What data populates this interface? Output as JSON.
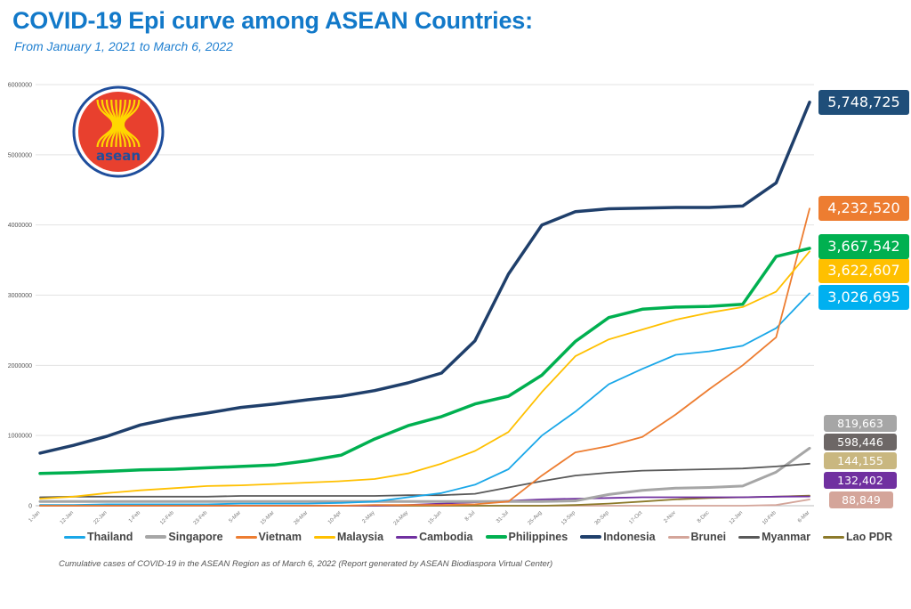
{
  "header": {
    "title": "COVID-19 Epi curve among ASEAN Countries:",
    "subtitle": "From January 1, 2021 to March 6, 2022"
  },
  "logo": {
    "text": "asean",
    "ring_color": "#1f4e9c",
    "fill_color": "#e8402e",
    "stalk_color": "#ffd700"
  },
  "caption": "Cumulative cases of COVID-19 in the ASEAN Region as of March 6, 2022 (Report generated by ASEAN Biodiaspora Virtual Center)",
  "chart_data": {
    "type": "line",
    "title": "COVID-19 Epi curve among ASEAN Countries:",
    "xlabel": "",
    "ylabel": "",
    "ylim": [
      0,
      6000000
    ],
    "y_ticks": [
      "0",
      "1000000",
      "2000000",
      "3000000",
      "4000000",
      "5000000",
      "6000000"
    ],
    "grid": true,
    "legend_position": "bottom",
    "categories": [
      "1-Jan",
      "12-Jan",
      "22-Jan",
      "1-Feb",
      "12-Feb",
      "23-Feb",
      "5-Mar",
      "15-Mar",
      "26-Mar",
      "10-Apr",
      "2-May",
      "24-May",
      "15-Jun",
      "8-Jul",
      "31-Jul",
      "25-Aug",
      "13-Sep",
      "30-Sep",
      "17-Oct",
      "2-Nov",
      "8-Dec",
      "12-Jan",
      "10-Feb",
      "6-Mar"
    ],
    "series": [
      {
        "name": "Thailand",
        "color": "#1aa7e8",
        "label_color": "#00b0f0",
        "final_label": "3,026,695",
        "values": [
          10000,
          10000,
          20000,
          20000,
          20000,
          20000,
          30000,
          30000,
          30000,
          40000,
          60000,
          120000,
          180000,
          300000,
          520000,
          1000000,
          1340000,
          1730000,
          1950000,
          2150000,
          2200000,
          2280000,
          2530000,
          3026695
        ]
      },
      {
        "name": "Singapore",
        "color": "#a6a6a6",
        "label_color": "#a6a6a6",
        "final_label": "819,663",
        "values": [
          60000,
          60000,
          60000,
          60000,
          60000,
          60000,
          60000,
          60000,
          60000,
          60000,
          60000,
          60000,
          60000,
          60000,
          60000,
          60000,
          70000,
          160000,
          220000,
          250000,
          260000,
          280000,
          480000,
          819663
        ]
      },
      {
        "name": "Vietnam",
        "color": "#ed7d31",
        "label_color": "#ed7d31",
        "final_label": "4,232,520",
        "values": [
          0,
          0,
          0,
          0,
          0,
          0,
          0,
          0,
          0,
          0,
          10000,
          10000,
          10000,
          20000,
          60000,
          430000,
          760000,
          850000,
          980000,
          1300000,
          1660000,
          2000000,
          2400000,
          4232520
        ]
      },
      {
        "name": "Malaysia",
        "color": "#ffc000",
        "label_color": "#ffc000",
        "final_label": "3,622,607",
        "values": [
          100000,
          130000,
          180000,
          220000,
          250000,
          280000,
          290000,
          310000,
          330000,
          350000,
          380000,
          460000,
          600000,
          780000,
          1050000,
          1620000,
          2130000,
          2370000,
          2510000,
          2650000,
          2750000,
          2830000,
          3050000,
          3622607
        ]
      },
      {
        "name": "Cambodia",
        "color": "#7030a0",
        "label_color": "#7030a0",
        "final_label": "132,402",
        "values": [
          0,
          0,
          0,
          0,
          0,
          0,
          0,
          0,
          0,
          0,
          0,
          10000,
          30000,
          50000,
          70000,
          90000,
          100000,
          110000,
          120000,
          120000,
          120000,
          120000,
          130000,
          132402
        ]
      },
      {
        "name": "Philippines",
        "color": "#00b050",
        "label_color": "#00b050",
        "final_label": "3,667,542",
        "values": [
          460000,
          470000,
          490000,
          510000,
          520000,
          540000,
          560000,
          580000,
          640000,
          720000,
          950000,
          1140000,
          1270000,
          1450000,
          1560000,
          1860000,
          2340000,
          2680000,
          2800000,
          2830000,
          2840000,
          2870000,
          3550000,
          3667542
        ]
      },
      {
        "name": "Indonesia",
        "color": "#1f3f6b",
        "label_color": "#1f4e79",
        "final_label": "5,748,725",
        "values": [
          750000,
          860000,
          990000,
          1150000,
          1250000,
          1320000,
          1400000,
          1450000,
          1510000,
          1560000,
          1640000,
          1750000,
          1890000,
          2350000,
          3300000,
          4000000,
          4190000,
          4230000,
          4240000,
          4250000,
          4250000,
          4270000,
          4600000,
          5748725
        ]
      },
      {
        "name": "Brunei",
        "color": "#d4a59a",
        "label_color": "#d4a59a",
        "final_label": "88,849",
        "values": [
          0,
          0,
          0,
          0,
          0,
          0,
          0,
          0,
          0,
          0,
          0,
          0,
          0,
          0,
          0,
          0,
          0,
          0,
          0,
          0,
          0,
          0,
          10000,
          88849
        ]
      },
      {
        "name": "Myanmar",
        "color": "#595959",
        "label_color": "#6d6766",
        "final_label": "598,446",
        "values": [
          120000,
          130000,
          130000,
          130000,
          130000,
          130000,
          140000,
          140000,
          140000,
          140000,
          140000,
          150000,
          150000,
          170000,
          260000,
          350000,
          430000,
          470000,
          500000,
          510000,
          520000,
          530000,
          560000,
          598446
        ]
      },
      {
        "name": "Lao PDR",
        "color": "#8c7a2a",
        "label_color": "#c9b780",
        "final_label": "144,155",
        "values": [
          0,
          0,
          0,
          0,
          0,
          0,
          0,
          0,
          0,
          0,
          0,
          0,
          0,
          0,
          0,
          0,
          10000,
          30000,
          60000,
          90000,
          110000,
          120000,
          130000,
          144155
        ]
      }
    ]
  }
}
